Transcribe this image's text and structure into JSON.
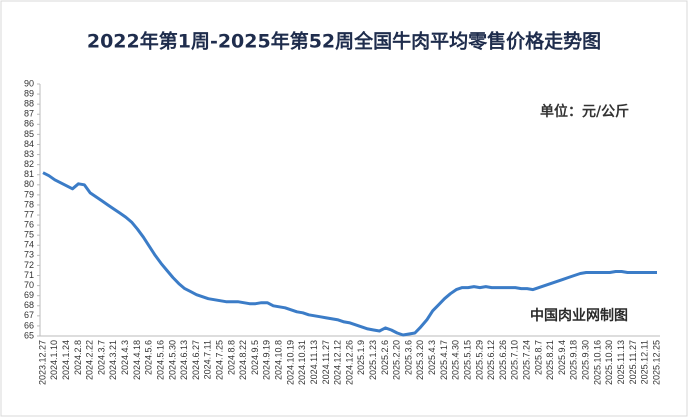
{
  "chart_data": {
    "type": "line",
    "title": "2022年第1周-2025年第52周全国牛肉平均零售价格走势图",
    "unit_note": "单位：元/公斤",
    "source_note": "中国肉业网制图",
    "color": "#3b7cc7",
    "ylim": [
      65,
      90
    ],
    "yticks": [
      65,
      66,
      67,
      68,
      69,
      70,
      71,
      72,
      73,
      74,
      75,
      76,
      77,
      78,
      79,
      80,
      81,
      82,
      83,
      84,
      85,
      86,
      87,
      88,
      89,
      90
    ],
    "categories": [
      "2023.12.27",
      null,
      "2024.1.10",
      null,
      "2024.1.24",
      null,
      "2024.2.8",
      null,
      "2024.2.22",
      null,
      "2024.3.7",
      null,
      "2024.3.21",
      null,
      "2024.4.3",
      null,
      "2024.4.18",
      null,
      "2024.5.6",
      null,
      "2024.5.16",
      null,
      "2024.5.30",
      null,
      "2024.6.13",
      null,
      "2024.6.27",
      null,
      "2024.7.11",
      null,
      "2024.7.25",
      null,
      "2024.8.8",
      null,
      "2024.8.22",
      null,
      "2024.9.5",
      null,
      "2024.9.19",
      null,
      "2024.10.8",
      null,
      "2024.10.19",
      null,
      "2024.10.31",
      null,
      "2024.11.13",
      null,
      "2024.11.27",
      null,
      "2024.12.12",
      null,
      "2024.12.26",
      null,
      "2025.1.9",
      null,
      "2025.1.23",
      null,
      "2025.2.6",
      null,
      "2025.2.20",
      null,
      "2025.3.6",
      null,
      "2025.3.20",
      null,
      "2025.4.3",
      null,
      "2025.4.17",
      null,
      "2025.4.30",
      null,
      "2025.5.15",
      null,
      "2025.5.29",
      null,
      "2025.6.12",
      null,
      "2025.6.26",
      null,
      "2025.7.10",
      null,
      "2025.7.24",
      null,
      "2025.8.7",
      null,
      "2025.8.21",
      null,
      "2025.9.4",
      null,
      "2025.9.18",
      null,
      "2025.9.30",
      null,
      "2025.10.16",
      null,
      "2025.10.30",
      null,
      "2025.11.13",
      null,
      "2025.11.27",
      null,
      "2025.12.11",
      null,
      "2025.12.25"
    ],
    "values": [
      81.2,
      80.9,
      80.5,
      80.2,
      79.9,
      79.6,
      80.1,
      80.0,
      79.2,
      78.8,
      78.4,
      78.0,
      77.6,
      77.2,
      76.8,
      76.3,
      75.6,
      74.8,
      73.9,
      73.0,
      72.2,
      71.5,
      70.8,
      70.2,
      69.7,
      69.4,
      69.1,
      68.9,
      68.7,
      68.6,
      68.5,
      68.4,
      68.4,
      68.4,
      68.3,
      68.2,
      68.2,
      68.3,
      68.3,
      68.0,
      67.9,
      67.8,
      67.6,
      67.4,
      67.3,
      67.1,
      67.0,
      66.9,
      66.8,
      66.7,
      66.6,
      66.4,
      66.3,
      66.1,
      65.9,
      65.7,
      65.6,
      65.5,
      65.8,
      65.6,
      65.3,
      65.1,
      65.2,
      65.3,
      65.9,
      66.6,
      67.5,
      68.1,
      68.7,
      69.2,
      69.6,
      69.8,
      69.8,
      69.9,
      69.8,
      69.9,
      69.8,
      69.8,
      69.8,
      69.8,
      69.8,
      69.7,
      69.7,
      69.6,
      69.8,
      70.0,
      70.2,
      70.4,
      70.6,
      70.8,
      71.0,
      71.2,
      71.3,
      71.3,
      71.3,
      71.3,
      71.3,
      71.4,
      71.4,
      71.3,
      71.3,
      71.3,
      71.3,
      71.3,
      71.3
    ]
  }
}
